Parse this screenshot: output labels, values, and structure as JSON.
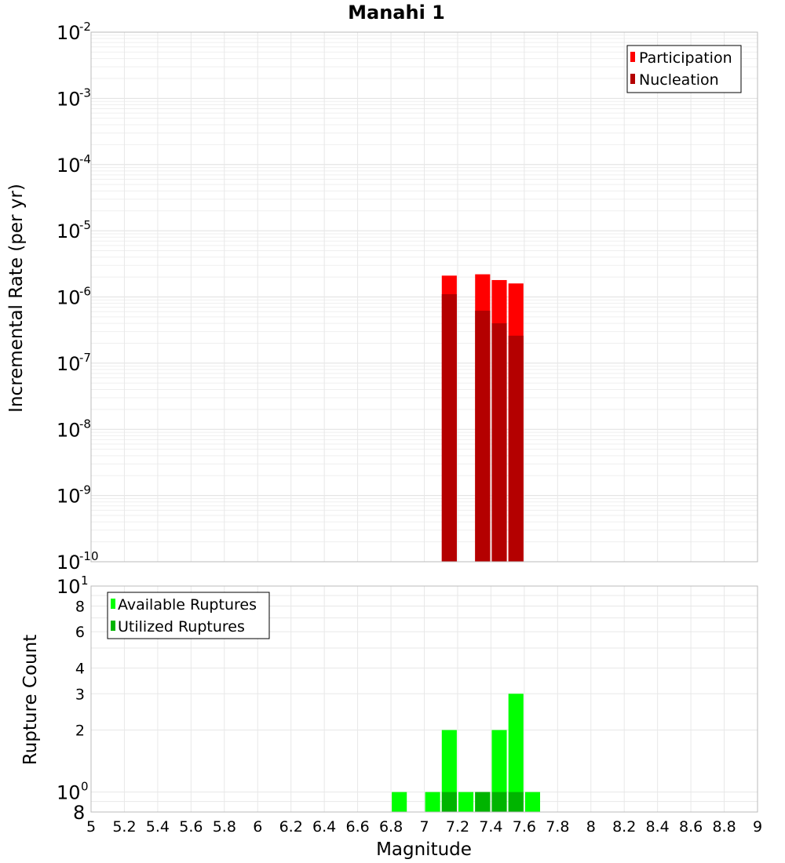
{
  "chart_data": [
    {
      "type": "bar",
      "title": "Manahi 1",
      "xlabel": "",
      "ylabel": "Incremental Rate (per yr)",
      "yscale": "log",
      "ylim": [
        1e-10,
        0.01
      ],
      "xlim": [
        5,
        9
      ],
      "y_ticks": [
        {
          "base": "10",
          "exp": "-2",
          "value": 0.01
        },
        {
          "base": "10",
          "exp": "-3",
          "value": 0.001
        },
        {
          "base": "10",
          "exp": "-4",
          "value": 0.0001
        },
        {
          "base": "10",
          "exp": "-5",
          "value": 1e-05
        },
        {
          "base": "10",
          "exp": "-6",
          "value": 1e-06
        },
        {
          "base": "10",
          "exp": "-7",
          "value": 1e-07
        },
        {
          "base": "10",
          "exp": "-8",
          "value": 1e-08
        },
        {
          "base": "10",
          "exp": "-9",
          "value": 1e-09
        },
        {
          "base": "10",
          "exp": "-10",
          "value": 1e-10
        }
      ],
      "grid": true,
      "legend_position": "top-right",
      "bar_width": 0.09,
      "series": [
        {
          "name": "Participation",
          "color": "#ff0000",
          "points": [
            {
              "x": 7.15,
              "y": 2.1e-06
            },
            {
              "x": 7.35,
              "y": 2.2e-06
            },
            {
              "x": 7.45,
              "y": 1.8e-06
            },
            {
              "x": 7.55,
              "y": 1.6e-06
            }
          ]
        },
        {
          "name": "Nucleation",
          "color": "#b40000",
          "points": [
            {
              "x": 7.15,
              "y": 1.1e-06
            },
            {
              "x": 7.35,
              "y": 6.2e-07
            },
            {
              "x": 7.45,
              "y": 4e-07
            },
            {
              "x": 7.55,
              "y": 2.6e-07
            }
          ]
        }
      ]
    },
    {
      "type": "bar",
      "title": "",
      "xlabel": "Magnitude",
      "ylabel": "Rupture Count",
      "yscale": "log",
      "ylim": [
        0.8,
        10
      ],
      "xlim": [
        5,
        9
      ],
      "x_ticks": [
        "5",
        "5.2",
        "5.4",
        "5.6",
        "5.8",
        "6",
        "6.2",
        "6.4",
        "6.6",
        "6.8",
        "7",
        "7.2",
        "7.4",
        "7.6",
        "7.8",
        "8",
        "8.2",
        "8.4",
        "8.6",
        "8.8",
        "9"
      ],
      "y_ticks": [
        {
          "label": "8",
          "value": 8
        },
        {
          "label": "6",
          "value": 6
        },
        {
          "label": "4",
          "value": 4
        },
        {
          "label": "3",
          "value": 3
        },
        {
          "label": "2",
          "value": 2
        }
      ],
      "y_major_ticks": [
        {
          "base": "10",
          "exp": "1",
          "value": 10
        },
        {
          "base": "10",
          "exp": "0",
          "value": 1
        },
        {
          "base": "8",
          "exp": "",
          "value": 0.8
        }
      ],
      "grid": true,
      "legend_position": "top-left",
      "bar_width": 0.09,
      "series": [
        {
          "name": "Available Ruptures",
          "color": "#00ff00",
          "points": [
            {
              "x": 6.85,
              "y": 1
            },
            {
              "x": 7.05,
              "y": 1
            },
            {
              "x": 7.15,
              "y": 2
            },
            {
              "x": 7.25,
              "y": 1
            },
            {
              "x": 7.35,
              "y": 1
            },
            {
              "x": 7.45,
              "y": 2
            },
            {
              "x": 7.55,
              "y": 3
            },
            {
              "x": 7.65,
              "y": 1
            }
          ]
        },
        {
          "name": "Utilized Ruptures",
          "color": "#00b400",
          "points": [
            {
              "x": 7.15,
              "y": 1
            },
            {
              "x": 7.35,
              "y": 1
            },
            {
              "x": 7.45,
              "y": 1
            },
            {
              "x": 7.55,
              "y": 1
            }
          ]
        }
      ]
    }
  ]
}
